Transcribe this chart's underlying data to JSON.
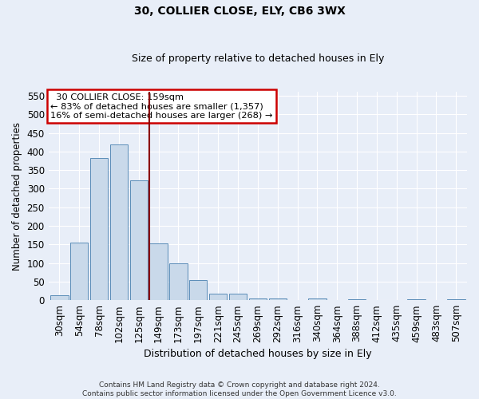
{
  "title1": "30, COLLIER CLOSE, ELY, CB6 3WX",
  "title2": "Size of property relative to detached houses in Ely",
  "xlabel": "Distribution of detached houses by size in Ely",
  "ylabel": "Number of detached properties",
  "annotation_line1": "  30 COLLIER CLOSE: 159sqm  ",
  "annotation_line2": "← 83% of detached houses are smaller (1,357)",
  "annotation_line3": "16% of semi-detached houses are larger (268) →",
  "footer1": "Contains HM Land Registry data © Crown copyright and database right 2024.",
  "footer2": "Contains public sector information licensed under the Open Government Licence v3.0.",
  "categories": [
    "30sqm",
    "54sqm",
    "78sqm",
    "102sqm",
    "125sqm",
    "149sqm",
    "173sqm",
    "197sqm",
    "221sqm",
    "245sqm",
    "269sqm",
    "292sqm",
    "316sqm",
    "340sqm",
    "364sqm",
    "388sqm",
    "412sqm",
    "435sqm",
    "459sqm",
    "483sqm",
    "507sqm"
  ],
  "values": [
    13,
    155,
    382,
    420,
    322,
    152,
    100,
    55,
    18,
    18,
    5,
    5,
    0,
    5,
    0,
    3,
    0,
    0,
    2,
    0,
    2
  ],
  "bar_color": "#c9d9ea",
  "bar_edge_color": "#5b8db8",
  "marker_index": 5,
  "marker_color": "#8b0000",
  "ylim": [
    0,
    560
  ],
  "yticks": [
    0,
    50,
    100,
    150,
    200,
    250,
    300,
    350,
    400,
    450,
    500,
    550
  ],
  "bg_color": "#e8eef8",
  "plot_bg_color": "#e8eef8",
  "grid_color": "#ffffff",
  "annotation_box_color": "#ffffff",
  "annotation_border_color": "#cc0000"
}
